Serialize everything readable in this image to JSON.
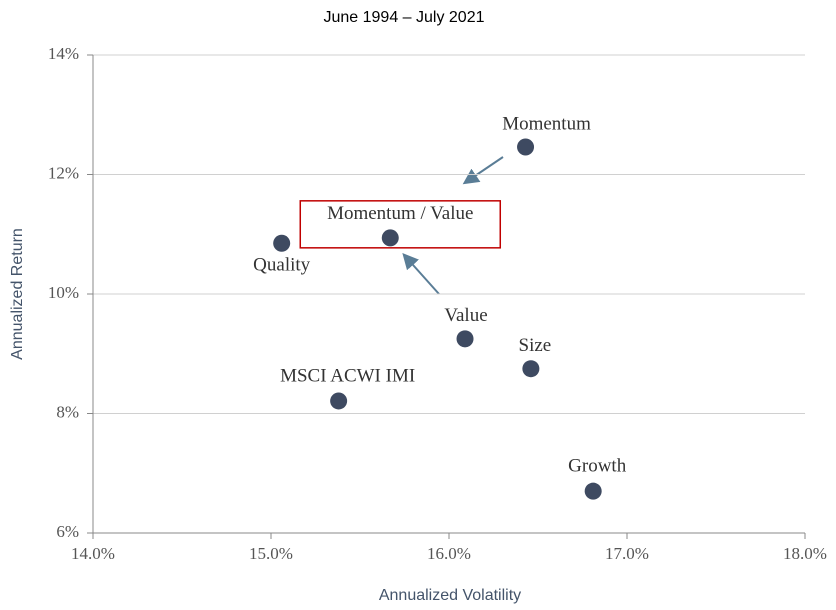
{
  "chart_data": {
    "type": "scatter",
    "title": "June 1994 – July 2021",
    "xlabel": "Annualized Volatility",
    "ylabel": "Annualized Return",
    "labels": [
      "Momentum",
      "Momentum / Value",
      "Quality",
      "Value",
      "Size",
      "MSCI ACWI IMI",
      "Growth"
    ],
    "x": [
      16.43,
      15.67,
      15.06,
      16.09,
      16.46,
      15.38,
      16.81
    ],
    "y": [
      12.46,
      10.94,
      10.85,
      9.25,
      8.75,
      8.21,
      6.7
    ],
    "color": "#3e4a61",
    "highlight_index": 1,
    "xlim": [
      14,
      18
    ],
    "xticks": [
      {
        "value": 14,
        "label": "14.0%"
      },
      {
        "value": 15,
        "label": "15.0%"
      },
      {
        "value": 16,
        "label": "16.0%"
      },
      {
        "value": 17,
        "label": "17.0%"
      },
      {
        "value": 18,
        "label": "18.0%"
      }
    ],
    "ylim": [
      6,
      14
    ],
    "yticks": [
      {
        "value": 6,
        "label": "6%"
      },
      {
        "value": 8,
        "label": "8%"
      },
      {
        "value": 10,
        "label": "10%"
      },
      {
        "value": 12,
        "label": "12%"
      },
      {
        "value": 14,
        "label": "14%"
      }
    ],
    "grid": true
  }
}
